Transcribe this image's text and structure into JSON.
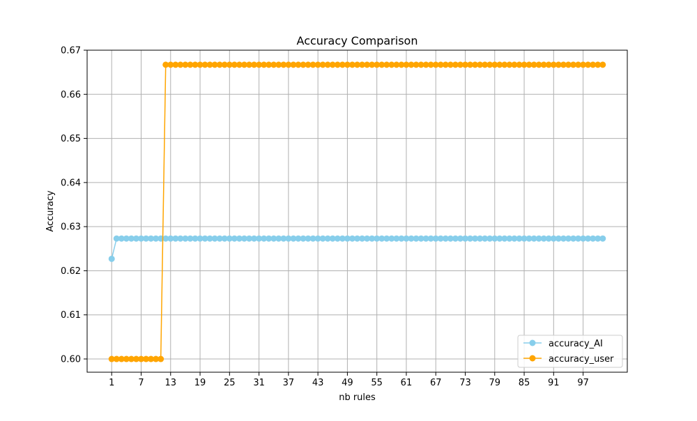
{
  "chart_data": {
    "type": "line",
    "title": "Accuracy Comparison",
    "xlabel": "nb rules",
    "ylabel": "Accuracy",
    "xlim": [
      -4,
      106
    ],
    "ylim": [
      0.597,
      0.67
    ],
    "x_start": 1,
    "x_end": 101,
    "x_ticks": [
      1,
      7,
      13,
      19,
      25,
      31,
      37,
      43,
      49,
      55,
      61,
      67,
      73,
      79,
      85,
      91,
      97
    ],
    "y_ticks": [
      0.6,
      0.61,
      0.62,
      0.63,
      0.64,
      0.65,
      0.66,
      0.67
    ],
    "y_tick_labels": [
      "0.60",
      "0.61",
      "0.62",
      "0.63",
      "0.64",
      "0.65",
      "0.66",
      "0.67"
    ],
    "grid": true,
    "legend_position": "lower-right",
    "series": [
      {
        "name": "accuracy_AI",
        "color": "#87ceeb",
        "marker": "circle",
        "segments": [
          {
            "from": 1,
            "to": 1,
            "value": 0.6227
          },
          {
            "from": 2,
            "to": 101,
            "value": 0.6273
          }
        ]
      },
      {
        "name": "accuracy_user",
        "color": "#ffa500",
        "marker": "circle",
        "segments": [
          {
            "from": 1,
            "to": 11,
            "value": 0.6
          },
          {
            "from": 12,
            "to": 101,
            "value": 0.6667
          }
        ]
      }
    ]
  }
}
